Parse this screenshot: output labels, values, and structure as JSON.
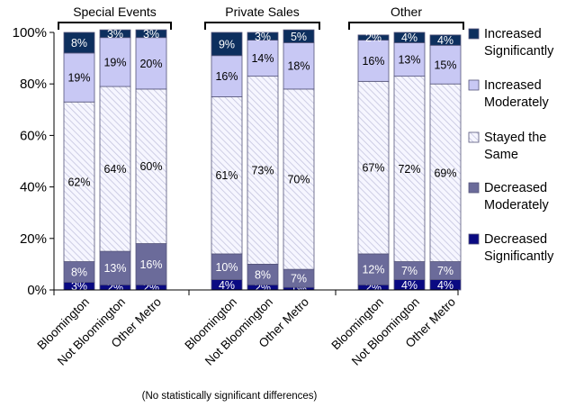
{
  "chart_data": {
    "type": "bar",
    "stacked": true,
    "percent": true,
    "groups": [
      "Special Events",
      "Private Sales",
      "Other"
    ],
    "categories": [
      "Bloomington",
      "Not Bloomington",
      "Other Metro",
      "Bloomington",
      "Not Bloomington",
      "Other Metro",
      "Bloomington",
      "Not Bloomington",
      "Other Metro"
    ],
    "series": [
      {
        "name": "Decreased Significantly",
        "values": [
          3,
          2,
          2,
          4,
          2,
          1,
          2,
          4,
          4
        ],
        "labels": [
          "3%",
          "2%",
          "2%",
          "4%",
          "2%",
          "1%",
          "2%",
          "4%",
          "4%"
        ],
        "color": "#0a0a82"
      },
      {
        "name": "Decreased Moderately",
        "values": [
          8,
          13,
          16,
          10,
          8,
          7,
          12,
          7,
          7
        ],
        "labels": [
          "8%",
          "13%",
          "16%",
          "10%",
          "8%",
          "7%",
          "12%",
          "7%",
          "7%"
        ],
        "color": "#6b6b9a"
      },
      {
        "name": "Stayed the Same",
        "values": [
          62,
          64,
          60,
          61,
          73,
          70,
          67,
          72,
          69
        ],
        "labels": [
          "62%",
          "64%",
          "60%",
          "61%",
          "73%",
          "70%",
          "67%",
          "72%",
          "69%"
        ],
        "color": "#f4f4ff"
      },
      {
        "name": "Increased Moderately",
        "values": [
          19,
          19,
          20,
          16,
          14,
          18,
          16,
          13,
          15
        ],
        "labels": [
          "19%",
          "19%",
          "20%",
          "16%",
          "14%",
          "18%",
          "16%",
          "13%",
          "15%"
        ],
        "color": "#c8c8f4"
      },
      {
        "name": "Increased Significantly",
        "values": [
          8,
          3,
          3,
          9,
          3,
          5,
          2,
          4,
          4
        ],
        "labels": [
          "8%",
          "3%",
          "3%",
          "9%",
          "3%",
          "5%",
          "2%",
          "4%",
          "4%"
        ],
        "color": "#0d2f5e"
      }
    ],
    "ylim": [
      0,
      100
    ],
    "yticks": [
      "0%",
      "20%",
      "40%",
      "60%",
      "80%",
      "100%"
    ],
    "legend": "right",
    "grid": false,
    "note": "(No statistically significant differences)"
  }
}
